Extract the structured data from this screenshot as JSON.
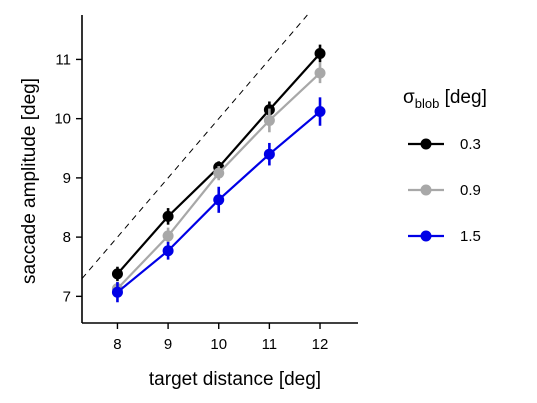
{
  "chart_data": {
    "type": "line",
    "xlabel": "target distance [deg]",
    "ylabel": "saccade amplitude [deg]",
    "x": [
      8,
      9,
      10,
      11,
      12
    ],
    "xlim": [
      7.3,
      12.75
    ],
    "ylim": [
      6.55,
      11.75
    ],
    "xticks": [
      "8",
      "9",
      "10",
      "11",
      "12"
    ],
    "yticks": [
      "7",
      "8",
      "9",
      "10",
      "11"
    ],
    "grid": false,
    "legend": {
      "placement": "right",
      "title_main": "σ",
      "title_sub": "blob",
      "title_unit": " [deg]"
    },
    "reference_line": {
      "style": "dashed",
      "slope": 1,
      "intercept": 0
    },
    "series": [
      {
        "name": "0.3",
        "color": "#000000",
        "values": [
          7.38,
          8.35,
          9.18,
          10.15,
          11.1
        ],
        "err": [
          0.12,
          0.14,
          0.1,
          0.14,
          0.15
        ]
      },
      {
        "name": "0.9",
        "color": "#a8a8a8",
        "values": [
          7.13,
          8.02,
          9.08,
          9.97,
          10.77
        ],
        "err": [
          0.12,
          0.14,
          0.12,
          0.2,
          0.17
        ]
      },
      {
        "name": "1.5",
        "color": "#0000e6",
        "values": [
          7.07,
          7.77,
          8.63,
          9.4,
          10.12
        ],
        "err": [
          0.17,
          0.15,
          0.22,
          0.19,
          0.24
        ]
      }
    ]
  }
}
